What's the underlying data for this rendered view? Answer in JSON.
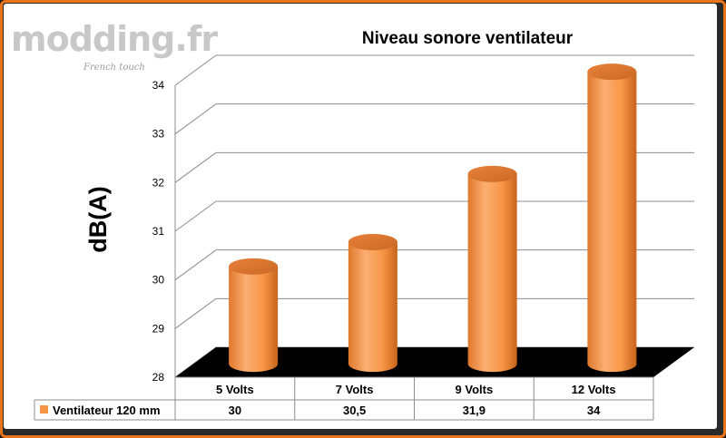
{
  "watermark": {
    "main": "modding.fr",
    "sub": "French touch"
  },
  "chart_data": {
    "type": "bar",
    "title": "Niveau sonore ventilateur",
    "ylabel": "dB(A)",
    "xlabel": "",
    "ylim": [
      28,
      34
    ],
    "yticks": [
      "28",
      "29",
      "30",
      "31",
      "32",
      "33",
      "34"
    ],
    "categories": [
      "5 Volts",
      "7 Volts",
      "9 Volts",
      "12 Volts"
    ],
    "series": [
      {
        "name": "Ventilateur 120 mm",
        "values": [
          30,
          30.5,
          31.9,
          34
        ],
        "labels": [
          "30",
          "30,5",
          "31,9",
          "34"
        ],
        "color": "#f79646"
      }
    ],
    "grid": true,
    "legend": "data-table"
  }
}
